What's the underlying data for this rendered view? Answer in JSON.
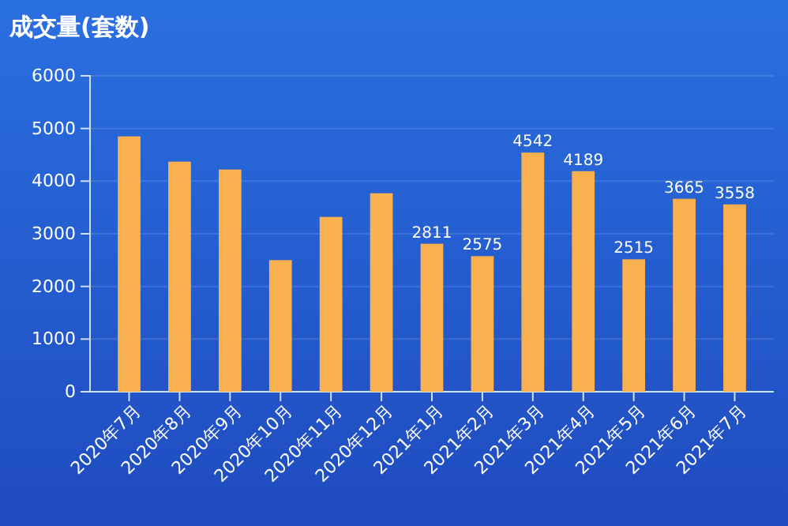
{
  "chart_data": {
    "type": "bar",
    "title": "成交量(套数)",
    "categories": [
      "2020年7月",
      "2020年8月",
      "2020年9月",
      "2020年10月",
      "2020年11月",
      "2020年12月",
      "2021年1月",
      "2021年2月",
      "2021年3月",
      "2021年4月",
      "2021年5月",
      "2021年6月",
      "2021年7月"
    ],
    "values": [
      4850,
      4370,
      4220,
      2500,
      3320,
      3770,
      2811,
      2575,
      4542,
      4189,
      2515,
      3665,
      3558
    ],
    "value_labels": [
      null,
      null,
      null,
      null,
      null,
      null,
      "2811",
      "2575",
      "4542",
      "4189",
      "2515",
      "3665",
      "3558"
    ],
    "color": "#f9b150",
    "ylim": [
      0,
      6000
    ],
    "yticks": [
      0,
      1000,
      2000,
      3000,
      4000,
      5000,
      6000
    ],
    "grid": "y"
  }
}
